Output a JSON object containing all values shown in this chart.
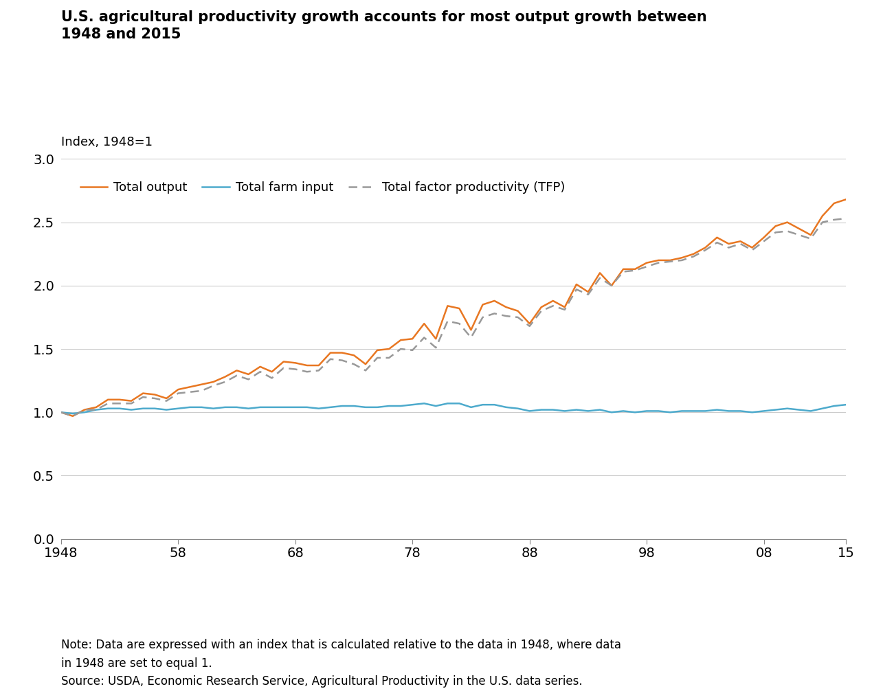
{
  "title": "U.S. agricultural productivity growth accounts for most output growth between\n1948 and 2015",
  "ylabel": "Index, 1948=1",
  "note": "Note: Data are expressed with an index that is calculated relative to the data in 1948, where data\nin 1948 are set to equal 1.\nSource: USDA, Economic Research Service, Agricultural Productivity in the U.S. data series.",
  "years": [
    1948,
    1949,
    1950,
    1951,
    1952,
    1953,
    1954,
    1955,
    1956,
    1957,
    1958,
    1959,
    1960,
    1961,
    1962,
    1963,
    1964,
    1965,
    1966,
    1967,
    1968,
    1969,
    1970,
    1971,
    1972,
    1973,
    1974,
    1975,
    1976,
    1977,
    1978,
    1979,
    1980,
    1981,
    1982,
    1983,
    1984,
    1985,
    1986,
    1987,
    1988,
    1989,
    1990,
    1991,
    1992,
    1993,
    1994,
    1995,
    1996,
    1997,
    1998,
    1999,
    2000,
    2001,
    2002,
    2003,
    2004,
    2005,
    2006,
    2007,
    2008,
    2009,
    2010,
    2011,
    2012,
    2013,
    2014,
    2015
  ],
  "total_output": [
    1.0,
    0.97,
    1.02,
    1.04,
    1.1,
    1.1,
    1.09,
    1.15,
    1.14,
    1.11,
    1.18,
    1.2,
    1.22,
    1.24,
    1.28,
    1.33,
    1.3,
    1.36,
    1.32,
    1.4,
    1.39,
    1.37,
    1.37,
    1.47,
    1.47,
    1.45,
    1.38,
    1.49,
    1.5,
    1.57,
    1.58,
    1.7,
    1.58,
    1.84,
    1.82,
    1.65,
    1.85,
    1.88,
    1.83,
    1.8,
    1.7,
    1.83,
    1.88,
    1.83,
    2.01,
    1.95,
    2.1,
    2.0,
    2.13,
    2.13,
    2.18,
    2.2,
    2.2,
    2.22,
    2.25,
    2.3,
    2.38,
    2.33,
    2.35,
    2.3,
    2.38,
    2.47,
    2.5,
    2.45,
    2.4,
    2.55,
    2.65,
    2.68
  ],
  "total_farm_input": [
    1.0,
    0.99,
    1.0,
    1.02,
    1.03,
    1.03,
    1.02,
    1.03,
    1.03,
    1.02,
    1.03,
    1.04,
    1.04,
    1.03,
    1.04,
    1.04,
    1.03,
    1.04,
    1.04,
    1.04,
    1.04,
    1.04,
    1.03,
    1.04,
    1.05,
    1.05,
    1.04,
    1.04,
    1.05,
    1.05,
    1.06,
    1.07,
    1.05,
    1.07,
    1.07,
    1.04,
    1.06,
    1.06,
    1.04,
    1.03,
    1.01,
    1.02,
    1.02,
    1.01,
    1.02,
    1.01,
    1.02,
    1.0,
    1.01,
    1.0,
    1.01,
    1.01,
    1.0,
    1.01,
    1.01,
    1.01,
    1.02,
    1.01,
    1.01,
    1.0,
    1.01,
    1.02,
    1.03,
    1.02,
    1.01,
    1.03,
    1.05,
    1.06
  ],
  "total_tfp": [
    1.0,
    0.97,
    1.02,
    1.02,
    1.07,
    1.07,
    1.07,
    1.12,
    1.11,
    1.09,
    1.15,
    1.16,
    1.17,
    1.21,
    1.24,
    1.29,
    1.26,
    1.32,
    1.27,
    1.35,
    1.34,
    1.32,
    1.33,
    1.42,
    1.41,
    1.38,
    1.33,
    1.43,
    1.43,
    1.5,
    1.49,
    1.59,
    1.51,
    1.72,
    1.7,
    1.59,
    1.75,
    1.78,
    1.76,
    1.75,
    1.68,
    1.8,
    1.84,
    1.81,
    1.97,
    1.93,
    2.06,
    2.0,
    2.11,
    2.12,
    2.15,
    2.18,
    2.19,
    2.2,
    2.23,
    2.28,
    2.34,
    2.3,
    2.33,
    2.28,
    2.35,
    2.42,
    2.43,
    2.4,
    2.37,
    2.5,
    2.52,
    2.53
  ],
  "total_output_color": "#E87722",
  "total_farm_input_color": "#4DAACC",
  "total_tfp_color": "#999999",
  "xlim": [
    1948,
    2015
  ],
  "ylim": [
    0.0,
    3.0
  ],
  "yticks": [
    0.0,
    0.5,
    1.0,
    1.5,
    2.0,
    2.5,
    3.0
  ],
  "xtick_positions": [
    1948,
    1958,
    1968,
    1978,
    1988,
    1998,
    2008,
    2015
  ],
  "xtick_labels": [
    "1948",
    "58",
    "68",
    "78",
    "88",
    "98",
    "08",
    "15"
  ],
  "background_color": "#ffffff",
  "grid_color": "#cccccc"
}
